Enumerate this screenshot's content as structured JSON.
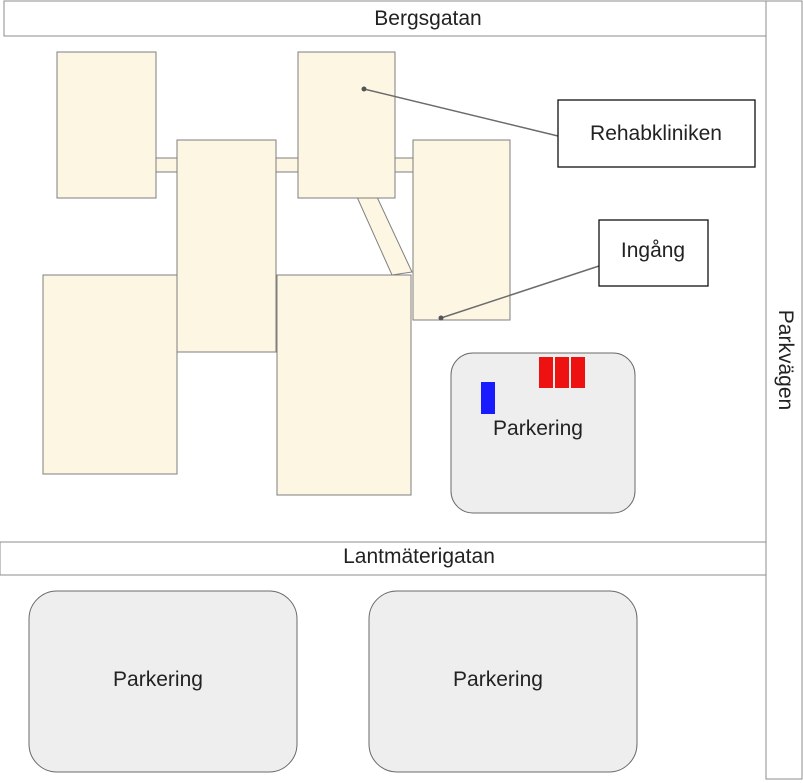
{
  "streets": {
    "top": "Bergsgatan",
    "middle": "Lantmäterigatan",
    "right": "Parkvägen"
  },
  "callouts": {
    "clinic": "Rehabkliniken",
    "entrance": "Ingång"
  },
  "parking": {
    "lot_1": "Parkering",
    "lot_2": "Parkering",
    "lot_3": "Parkering"
  },
  "markers": {
    "accessible_spot_color": "#1a1aff",
    "reserved_spots_color": "#ee1111",
    "reserved_spots_count": 3,
    "accessible_spots_count": 1
  },
  "colors": {
    "building_fill": "#fcf6e3",
    "parking_fill": "#eeeeee"
  }
}
